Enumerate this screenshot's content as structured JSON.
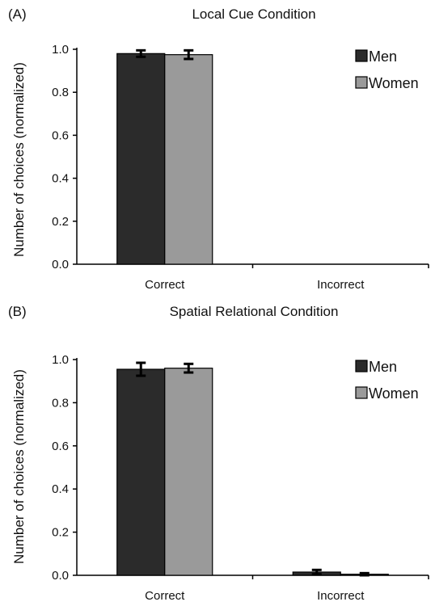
{
  "chart_data": [
    {
      "type": "bar",
      "panel_label": "(A)",
      "title": "Local Cue Condition",
      "ylabel": "Number of choices (normalized)",
      "xlabel": "",
      "categories": [
        "Correct",
        "Incorrect"
      ],
      "ylim": [
        0,
        1.0
      ],
      "yticks": [
        "0.0",
        "0.2",
        "0.4",
        "0.6",
        "0.8",
        "1.0"
      ],
      "series": [
        {
          "name": "Men",
          "values": [
            0.98,
            0.0
          ],
          "errors": [
            0.015,
            0.0
          ],
          "color": "#2b2b2b"
        },
        {
          "name": "Women",
          "values": [
            0.975,
            0.0
          ],
          "errors": [
            0.02,
            0.0
          ],
          "color": "#9a9a9a"
        }
      ],
      "legend": "top-right",
      "grid": false
    },
    {
      "type": "bar",
      "panel_label": "(B)",
      "title": "Spatial Relational Condition",
      "ylabel": "Number of choices (normalized)",
      "xlabel": "",
      "categories": [
        "Correct",
        "Incorrect"
      ],
      "ylim": [
        0,
        1.0
      ],
      "yticks": [
        "0.0",
        "0.2",
        "0.4",
        "0.6",
        "0.8",
        "1.0"
      ],
      "series": [
        {
          "name": "Men",
          "values": [
            0.955,
            0.015
          ],
          "errors": [
            0.03,
            0.01
          ],
          "color": "#2b2b2b"
        },
        {
          "name": "Women",
          "values": [
            0.96,
            0.005
          ],
          "errors": [
            0.02,
            0.005
          ],
          "color": "#9a9a9a"
        }
      ],
      "legend": "top-right",
      "grid": false
    }
  ]
}
